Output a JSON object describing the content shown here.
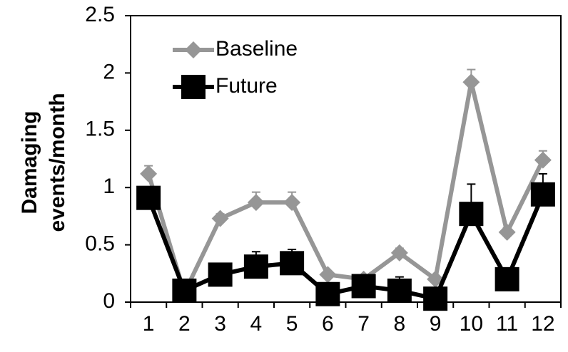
{
  "chart_data": {
    "type": "line",
    "title": "",
    "xlabel": "",
    "ylabel_lines": [
      "Damaging",
      "events/month"
    ],
    "categories": [
      "1",
      "2",
      "3",
      "4",
      "5",
      "6",
      "7",
      "8",
      "9",
      "10",
      "11",
      "12"
    ],
    "ylim": [
      0,
      2.5
    ],
    "yticks": [
      "0",
      "0.5",
      "1",
      "1.5",
      "2",
      "2.5"
    ],
    "grid": false,
    "legend_position": "top-left",
    "series": [
      {
        "name": "Baseline",
        "color": "#969696",
        "marker": "diamond",
        "values": [
          1.12,
          0.08,
          0.73,
          0.87,
          0.87,
          0.24,
          0.2,
          0.43,
          0.2,
          1.92,
          0.61,
          1.24
        ],
        "error": [
          0.07,
          0.02,
          0.04,
          0.09,
          0.09,
          0.03,
          0.03,
          0.04,
          0.03,
          0.11,
          0.04,
          0.08
        ]
      },
      {
        "name": "Future",
        "color": "#000000",
        "marker": "square",
        "values": [
          0.91,
          0.1,
          0.24,
          0.31,
          0.34,
          0.07,
          0.14,
          0.1,
          0.03,
          0.77,
          0.2,
          0.94
        ],
        "error": [
          0.07,
          0.03,
          0.05,
          0.13,
          0.12,
          0.03,
          0.07,
          0.12,
          0.03,
          0.26,
          0.04,
          0.18
        ]
      }
    ]
  }
}
